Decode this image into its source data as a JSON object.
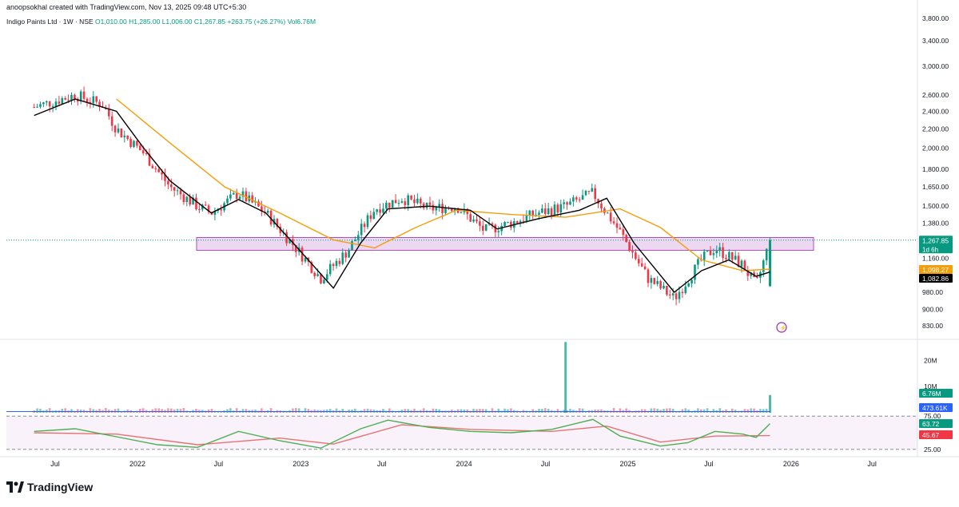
{
  "header": {
    "credit": "anoopsokhal created with TradingView.com, Nov 13, 2025 09:48 UTC+5:30",
    "symbol": "Indigo Paints Ltd · 1W · NSE",
    "ohlc": "O1,010.00  H1,285.00  L1,006.00  C1,267.85  +263.75 (+26.27%)  Vol6.76M"
  },
  "brand": {
    "name": "TradingView"
  },
  "colors": {
    "up": "#089981",
    "down": "#f23645",
    "ma_fast": "#000000",
    "ma_slow": "#f59e0b",
    "zone": "#e1bee7",
    "rsi": "#4caf50",
    "rsi_ma": "#e57373",
    "volume_ma": "#2962ff"
  },
  "price_axis": {
    "ticks": [
      "3,800.00",
      "3,400.00",
      "3,000.00",
      "2,600.00",
      "2,400.00",
      "2,200.00",
      "2,000.00",
      "1,800.00",
      "1,650.00",
      "1,500.00",
      "1,380.00",
      "1,160.00",
      "980.00",
      "900.00",
      "830.00"
    ],
    "badges": [
      {
        "id": "last",
        "label": "1,267.85",
        "sub": "1d 6h",
        "color": "#089981"
      },
      {
        "id": "ma_slow",
        "label": "1,098.27",
        "color": "#f59e0b"
      },
      {
        "id": "ma_fast",
        "label": "1,082.86",
        "color": "#000000"
      }
    ]
  },
  "volume_axis": {
    "ticks": [
      "20M",
      "10M"
    ],
    "badges": [
      {
        "id": "vol",
        "label": "6.76M",
        "color": "#089981"
      },
      {
        "id": "volma",
        "label": "473.61K",
        "color": "#2962ff"
      }
    ]
  },
  "rsi_axis": {
    "ticks": [
      "75.00",
      "25.00"
    ],
    "badges": [
      {
        "id": "rsi",
        "label": "63.72",
        "color": "#089981"
      },
      {
        "id": "rsima",
        "label": "45.67",
        "color": "#f23645"
      }
    ]
  },
  "time_axis": [
    "Jul",
    "2022",
    "Jul",
    "2023",
    "Jul",
    "2024",
    "Jul",
    "2025",
    "Jul",
    "2026",
    "Jul"
  ],
  "chart_data": {
    "type": "candlestick",
    "title": "Indigo Paints Ltd · 1W · NSE",
    "ohlc_last": {
      "open": 1010.0,
      "high": 1285.0,
      "low": 1006.0,
      "close": 1267.85,
      "change": 263.75,
      "change_pct": 26.27,
      "volume": "6.76M"
    },
    "y_scale": "log",
    "ylim": [
      800,
      3900
    ],
    "support_zone": [
      1205,
      1285
    ],
    "series": [
      {
        "name": "Weekly close (approx.)",
        "values": [
          {
            "x": "2021-05",
            "y": 2450
          },
          {
            "x": "2021-07",
            "y": 2550
          },
          {
            "x": "2021-08",
            "y": 2600
          },
          {
            "x": "2021-10",
            "y": 2480
          },
          {
            "x": "2021-11",
            "y": 2200
          },
          {
            "x": "2022-01",
            "y": 1950
          },
          {
            "x": "2022-03",
            "y": 1650
          },
          {
            "x": "2022-05",
            "y": 1500
          },
          {
            "x": "2022-06",
            "y": 1450
          },
          {
            "x": "2022-08",
            "y": 1600
          },
          {
            "x": "2022-10",
            "y": 1450
          },
          {
            "x": "2022-12",
            "y": 1240
          },
          {
            "x": "2023-02",
            "y": 1050
          },
          {
            "x": "2023-04",
            "y": 1200
          },
          {
            "x": "2023-06",
            "y": 1480
          },
          {
            "x": "2023-08",
            "y": 1560
          },
          {
            "x": "2023-10",
            "y": 1480
          },
          {
            "x": "2023-12",
            "y": 1500
          },
          {
            "x": "2024-02",
            "y": 1330
          },
          {
            "x": "2024-04",
            "y": 1380
          },
          {
            "x": "2024-06",
            "y": 1450
          },
          {
            "x": "2024-08",
            "y": 1500
          },
          {
            "x": "2024-10",
            "y": 1600
          },
          {
            "x": "2024-12",
            "y": 1320
          },
          {
            "x": "2025-02",
            "y": 1050
          },
          {
            "x": "2025-04",
            "y": 950
          },
          {
            "x": "2025-06",
            "y": 1150
          },
          {
            "x": "2025-07",
            "y": 1220
          },
          {
            "x": "2025-09",
            "y": 1120
          },
          {
            "x": "2025-10",
            "y": 1010
          },
          {
            "x": "2025-11",
            "y": 1267.85
          }
        ]
      },
      {
        "name": "MA fast (approx.)",
        "values": [
          {
            "x": "2021-05",
            "y": 2350
          },
          {
            "x": "2021-08",
            "y": 2550
          },
          {
            "x": "2021-11",
            "y": 2400
          },
          {
            "x": "2022-01",
            "y": 2000
          },
          {
            "x": "2022-03",
            "y": 1700
          },
          {
            "x": "2022-06",
            "y": 1450
          },
          {
            "x": "2022-08",
            "y": 1550
          },
          {
            "x": "2022-10",
            "y": 1450
          },
          {
            "x": "2022-12",
            "y": 1250
          },
          {
            "x": "2023-03",
            "y": 1000
          },
          {
            "x": "2023-05",
            "y": 1250
          },
          {
            "x": "2023-07",
            "y": 1480
          },
          {
            "x": "2023-10",
            "y": 1500
          },
          {
            "x": "2024-01",
            "y": 1470
          },
          {
            "x": "2024-03",
            "y": 1340
          },
          {
            "x": "2024-06",
            "y": 1410
          },
          {
            "x": "2024-09",
            "y": 1470
          },
          {
            "x": "2024-11",
            "y": 1560
          },
          {
            "x": "2025-01",
            "y": 1250
          },
          {
            "x": "2025-04",
            "y": 980
          },
          {
            "x": "2025-06",
            "y": 1090
          },
          {
            "x": "2025-08",
            "y": 1150
          },
          {
            "x": "2025-10",
            "y": 1060
          },
          {
            "x": "2025-11",
            "y": 1082.86
          }
        ]
      },
      {
        "name": "MA slow (approx.)",
        "values": [
          {
            "x": "2021-11",
            "y": 2550
          },
          {
            "x": "2022-03",
            "y": 2050
          },
          {
            "x": "2022-07",
            "y": 1650
          },
          {
            "x": "2022-11",
            "y": 1450
          },
          {
            "x": "2023-03",
            "y": 1270
          },
          {
            "x": "2023-06",
            "y": 1220
          },
          {
            "x": "2023-09",
            "y": 1350
          },
          {
            "x": "2023-12",
            "y": 1470
          },
          {
            "x": "2024-04",
            "y": 1440
          },
          {
            "x": "2024-08",
            "y": 1420
          },
          {
            "x": "2024-12",
            "y": 1480
          },
          {
            "x": "2025-03",
            "y": 1350
          },
          {
            "x": "2025-06",
            "y": 1150
          },
          {
            "x": "2025-09",
            "y": 1090
          },
          {
            "x": "2025-11",
            "y": 1098.27
          }
        ]
      }
    ],
    "volume": {
      "last": "6.76M",
      "ma": "473.61K",
      "ylim_millions": [
        0,
        28
      ],
      "spikes": [
        {
          "x": "2024-08",
          "value_millions": 27
        },
        {
          "x": "2025-11",
          "value_millions": 6.76
        }
      ]
    },
    "rsi": {
      "value": 63.72,
      "ma": 45.67,
      "bands": [
        25,
        75
      ],
      "ylim": [
        20,
        80
      ],
      "series": [
        {
          "name": "RSI (approx.)",
          "values": [
            {
              "x": "2021-05",
              "y": 52
            },
            {
              "x": "2021-08",
              "y": 56
            },
            {
              "x": "2021-11",
              "y": 44
            },
            {
              "x": "2022-02",
              "y": 32
            },
            {
              "x": "2022-05",
              "y": 28
            },
            {
              "x": "2022-08",
              "y": 52
            },
            {
              "x": "2022-11",
              "y": 38
            },
            {
              "x": "2023-02",
              "y": 27
            },
            {
              "x": "2023-05",
              "y": 56
            },
            {
              "x": "2023-07",
              "y": 69
            },
            {
              "x": "2023-10",
              "y": 58
            },
            {
              "x": "2024-01",
              "y": 52
            },
            {
              "x": "2024-04",
              "y": 50
            },
            {
              "x": "2024-07",
              "y": 55
            },
            {
              "x": "2024-10",
              "y": 70
            },
            {
              "x": "2024-12",
              "y": 45
            },
            {
              "x": "2025-03",
              "y": 30
            },
            {
              "x": "2025-05",
              "y": 35
            },
            {
              "x": "2025-07",
              "y": 52
            },
            {
              "x": "2025-09",
              "y": 48
            },
            {
              "x": "2025-10",
              "y": 43
            },
            {
              "x": "2025-11",
              "y": 63.72
            }
          ]
        },
        {
          "name": "RSI MA (approx.)",
          "values": [
            {
              "x": "2021-05",
              "y": 50
            },
            {
              "x": "2021-11",
              "y": 48
            },
            {
              "x": "2022-05",
              "y": 32
            },
            {
              "x": "2022-11",
              "y": 42
            },
            {
              "x": "2023-03",
              "y": 33
            },
            {
              "x": "2023-08",
              "y": 62
            },
            {
              "x": "2024-01",
              "y": 55
            },
            {
              "x": "2024-07",
              "y": 52
            },
            {
              "x": "2024-11",
              "y": 60
            },
            {
              "x": "2025-03",
              "y": 36
            },
            {
              "x": "2025-07",
              "y": 45
            },
            {
              "x": "2025-11",
              "y": 45.67
            }
          ]
        }
      ]
    }
  }
}
